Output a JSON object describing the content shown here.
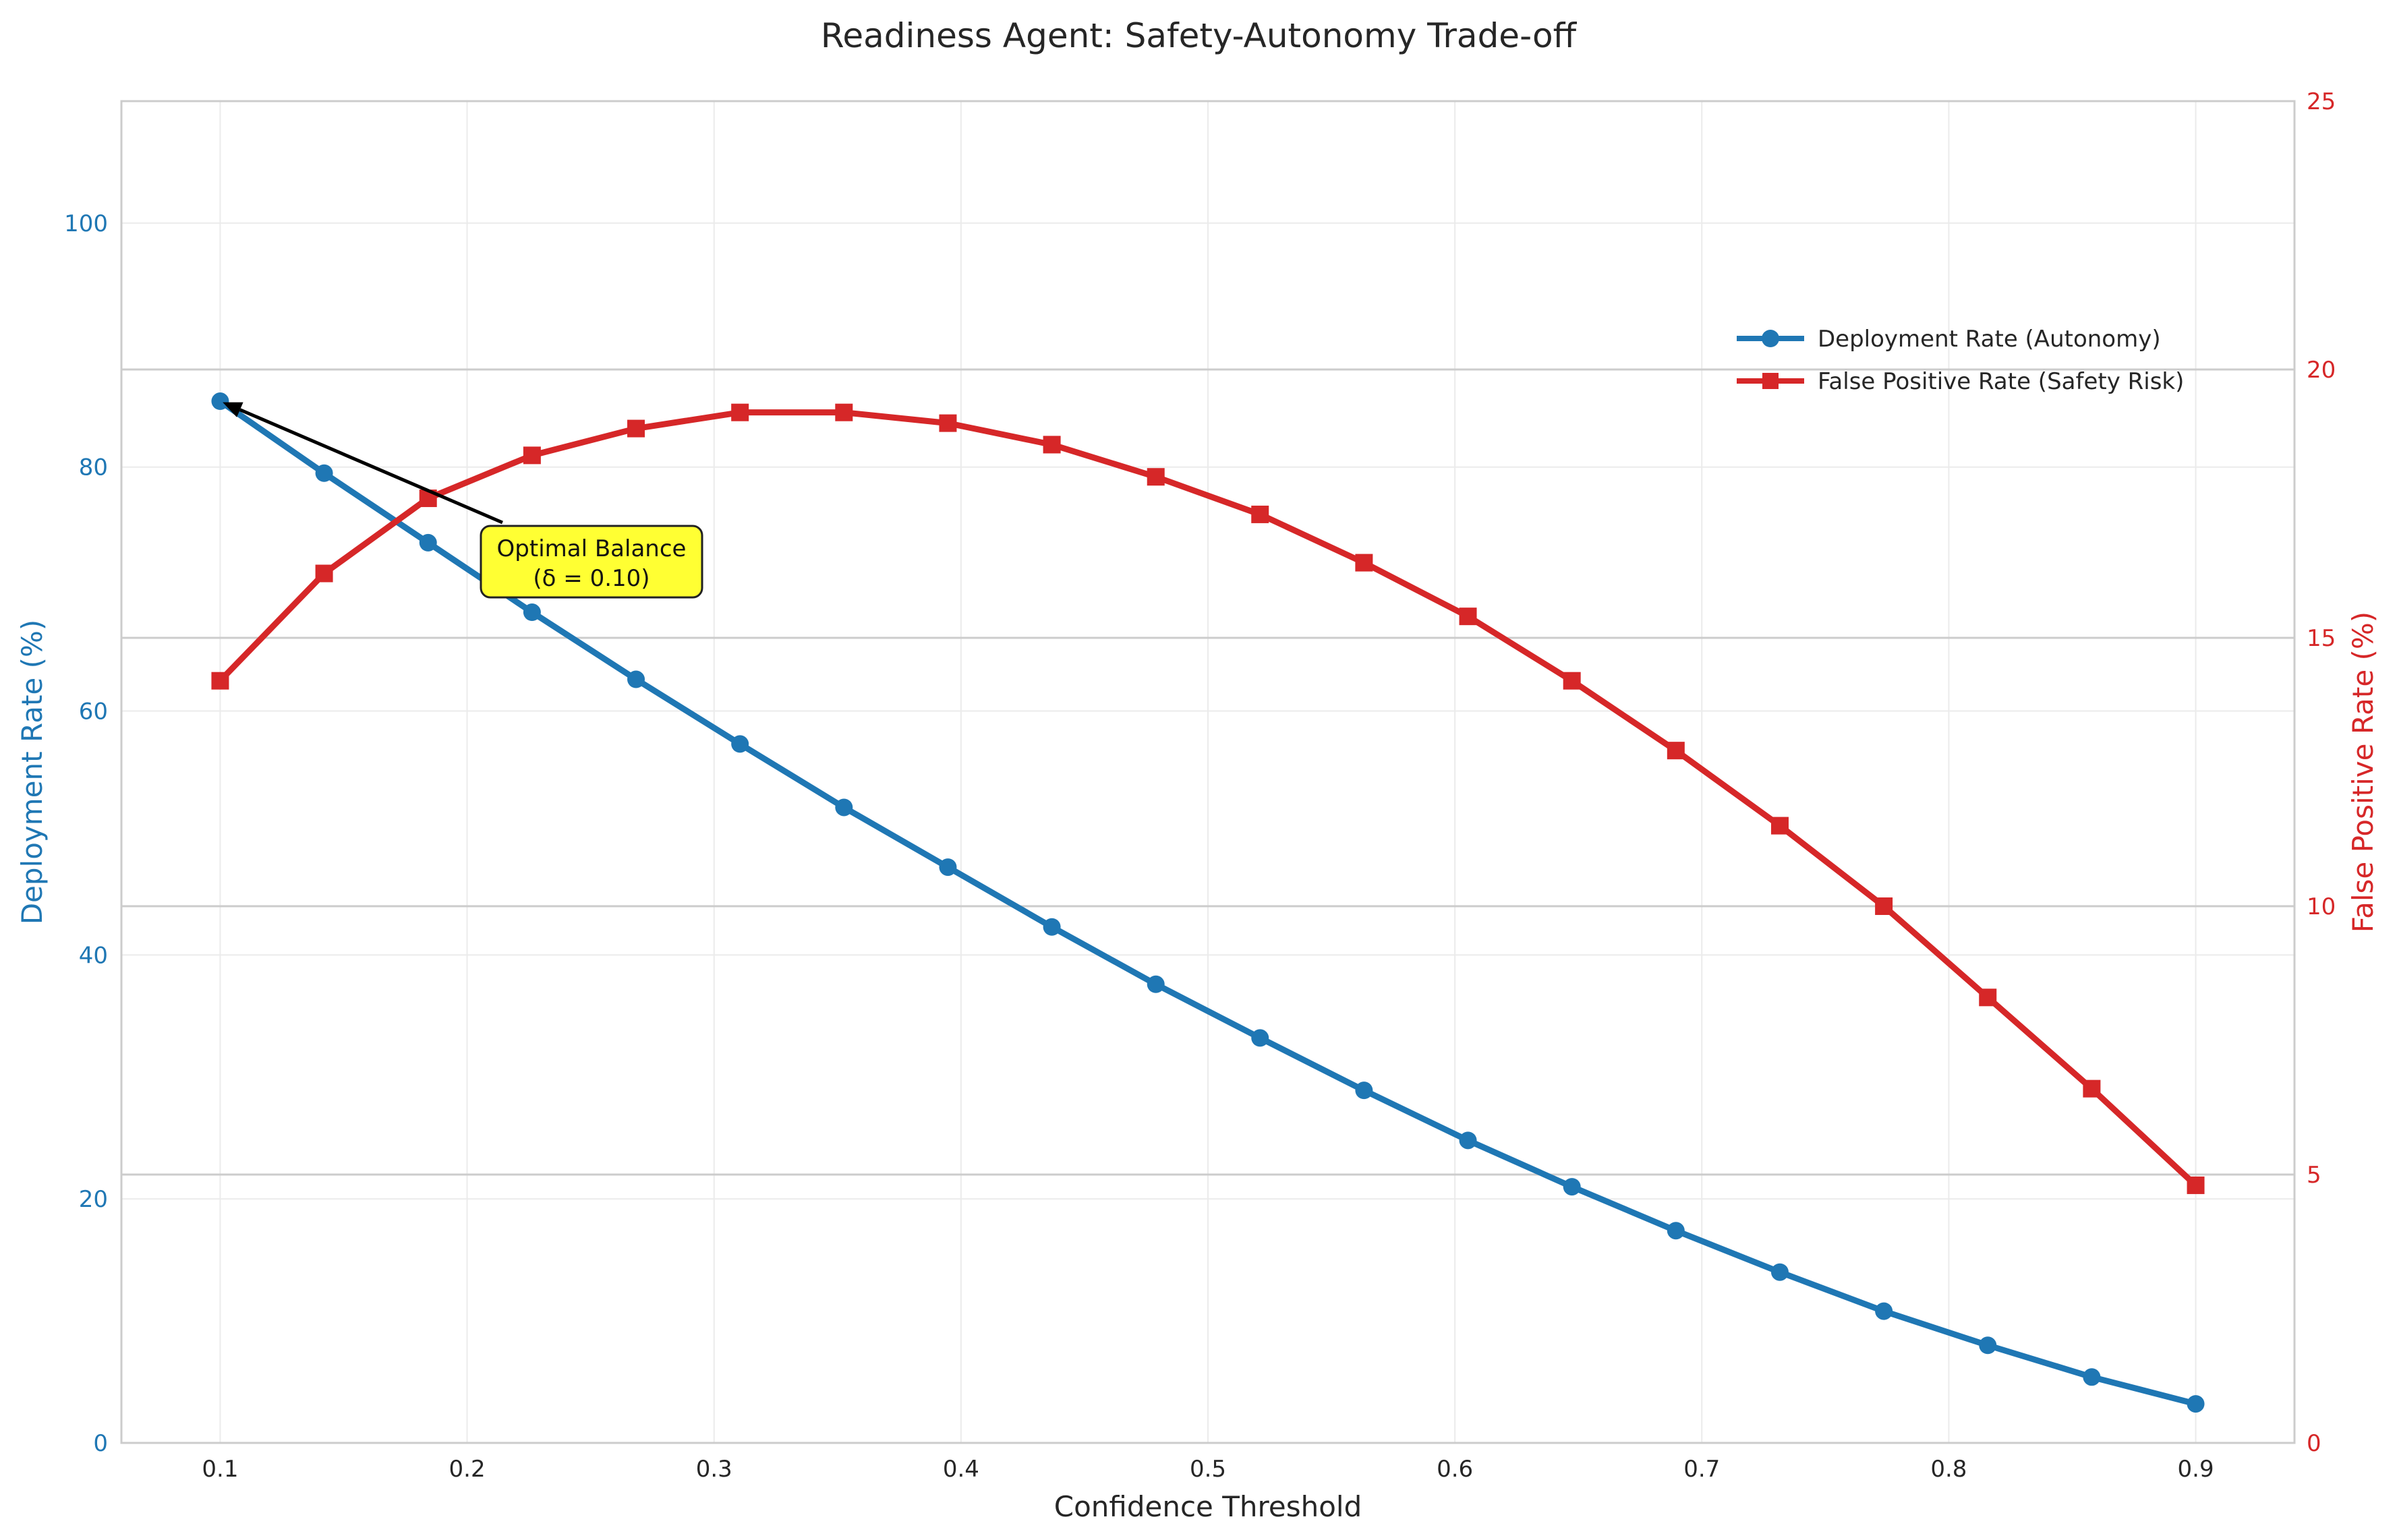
{
  "chart_data": {
    "type": "line",
    "title": "Readiness Agent: Safety-Autonomy Trade-off",
    "xlabel": "Confidence Threshold",
    "ylabel_left": "Deployment Rate (%)",
    "ylabel_right": "False Positive Rate (%)",
    "xlim": [
      0.06,
      0.94
    ],
    "ylim_left": [
      0,
      110
    ],
    "ylim_right": [
      0,
      25
    ],
    "x_ticks": [
      "0.1",
      "0.2",
      "0.3",
      "0.4",
      "0.5",
      "0.6",
      "0.7",
      "0.8",
      "0.9"
    ],
    "y_left_ticks": [
      "0",
      "20",
      "40",
      "60",
      "80",
      "100"
    ],
    "y_right_ticks": [
      "0",
      "5",
      "10",
      "15",
      "20",
      "25"
    ],
    "grid": true,
    "legend_position": "upper-right",
    "x": [
      0.1,
      0.1421,
      0.1842,
      0.2263,
      0.2684,
      0.3105,
      0.3526,
      0.3947,
      0.4368,
      0.4789,
      0.5211,
      0.5632,
      0.6053,
      0.6474,
      0.6895,
      0.7316,
      0.7737,
      0.8158,
      0.8579,
      0.9
    ],
    "series": [
      {
        "name": "Deployment Rate (Autonomy)",
        "axis": "left",
        "marker": "circle",
        "color": "#1f77b4",
        "values": [
          85.4,
          79.5,
          73.8,
          68.1,
          62.6,
          57.3,
          52.1,
          47.2,
          42.3,
          37.6,
          33.2,
          28.9,
          24.8,
          21.0,
          17.4,
          14.0,
          10.8,
          8.0,
          5.4,
          3.2
        ]
      },
      {
        "name": "False Positive Rate (Safety Risk)",
        "axis": "right",
        "marker": "square",
        "color": "#d62728",
        "values": [
          14.2,
          16.2,
          17.6,
          18.4,
          18.9,
          19.2,
          19.2,
          19.0,
          18.6,
          18.0,
          17.3,
          16.4,
          15.4,
          14.2,
          12.9,
          11.5,
          10.0,
          8.3,
          6.6,
          4.8
        ]
      }
    ],
    "annotation": {
      "text_line1": "Optimal Balance",
      "text_line2": "(δ = 0.10)",
      "target_x": 0.1,
      "target_y": 85.4,
      "box_color": "#ffff33"
    },
    "colors": {
      "left_axis": "#1f77b4",
      "right_axis": "#d62728",
      "text": "#262626",
      "grid": "#ebebeb",
      "spine": "#cccccc"
    }
  }
}
